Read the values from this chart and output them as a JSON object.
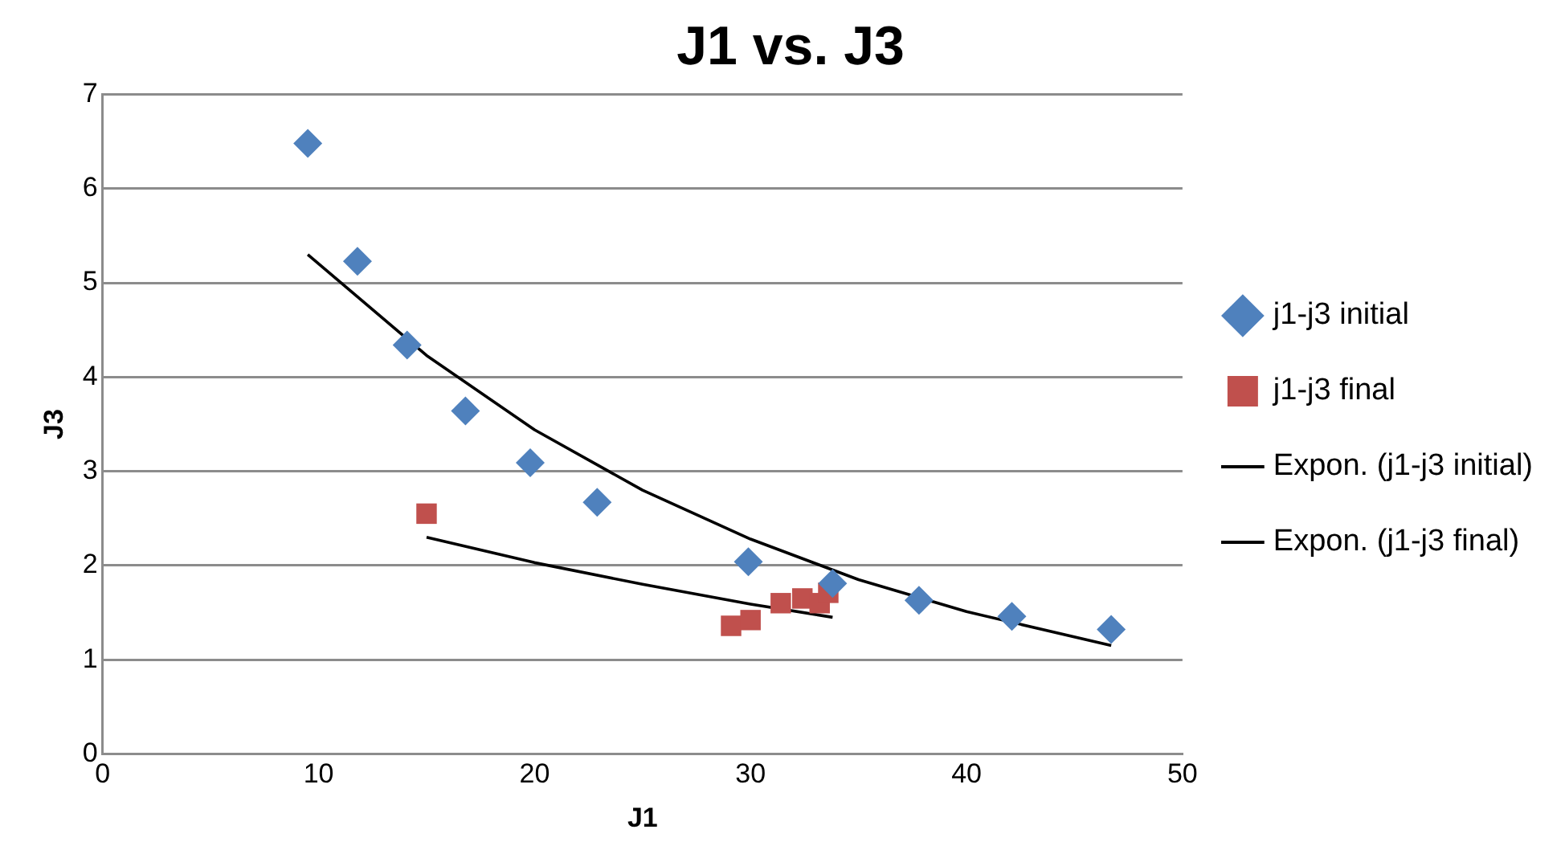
{
  "chart_data": {
    "type": "scatter",
    "title": "J1 vs. J3",
    "xlabel": "J1",
    "ylabel": "J3",
    "xlim": [
      0,
      50
    ],
    "xticks": [
      0,
      10,
      20,
      30,
      40,
      50
    ],
    "ylim": [
      0,
      7
    ],
    "yticks": [
      0,
      1,
      2,
      3,
      4,
      5,
      6,
      7
    ],
    "grid": "y",
    "legend": "right",
    "series": [
      {
        "name": "j1-j3 initial",
        "color": "#4f81bd",
        "marker": "diamond",
        "x": [
          9.5,
          11.8,
          14.1,
          16.8,
          19.8,
          22.9,
          29.9,
          33.8,
          37.8,
          42.1,
          46.7
        ],
        "values": [
          6.48,
          5.23,
          4.34,
          3.64,
          3.09,
          2.67,
          2.04,
          1.81,
          1.63,
          1.46,
          1.32
        ]
      },
      {
        "name": "j1-j3 final",
        "color": "#c0504d",
        "marker": "square",
        "x": [
          15.0,
          29.1,
          30.0,
          31.4,
          32.4,
          33.2,
          33.6
        ],
        "values": [
          2.55,
          1.36,
          1.42,
          1.6,
          1.65,
          1.6,
          1.71
        ]
      },
      {
        "name": "Expon. (j1-j3 initial)",
        "type": "line",
        "color": "#000000",
        "marker": "none",
        "x": [
          9.5,
          15,
          20,
          25,
          30,
          35,
          40,
          46.7
        ],
        "values": [
          5.3,
          4.23,
          3.44,
          2.8,
          2.28,
          1.85,
          1.51,
          1.15
        ]
      },
      {
        "name": "Expon. (j1-j3 final)",
        "type": "line",
        "color": "#000000",
        "marker": "none",
        "x": [
          15,
          20,
          25,
          30,
          33.8
        ],
        "values": [
          2.3,
          2.03,
          1.8,
          1.59,
          1.45
        ]
      }
    ]
  }
}
